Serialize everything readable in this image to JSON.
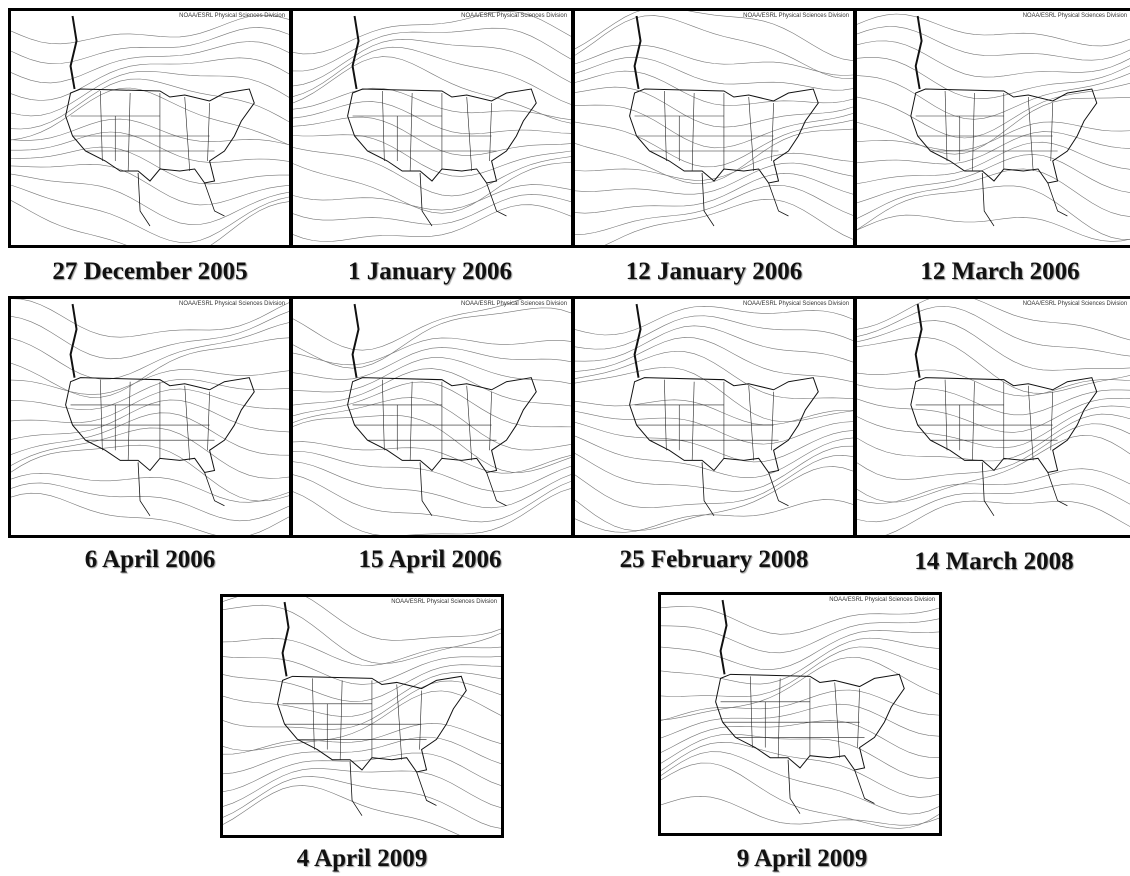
{
  "panels": [
    {
      "caption": "27 December 2005",
      "credit": "NOAA/ESRL Physical Sciences Division"
    },
    {
      "caption": "1 January 2006",
      "credit": "NOAA/ESRL Physical Sciences Division"
    },
    {
      "caption": "12 January 2006",
      "credit": "NOAA/ESRL Physical Sciences Division"
    },
    {
      "caption": "12 March 2006",
      "credit": "NOAA/ESRL Physical Sciences Division"
    },
    {
      "caption": "6 April 2006",
      "credit": "NOAA/ESRL Physical Sciences Division"
    },
    {
      "caption": "15 April 2006",
      "credit": "NOAA/ESRL Physical Sciences Division"
    },
    {
      "caption": "25 February 2008",
      "credit": "NOAA/ESRL Physical Sciences Division"
    },
    {
      "caption": "14 March 2008",
      "credit": "NOAA/ESRL Physical Sciences Division"
    },
    {
      "caption": "4 April 2009",
      "credit": "NOAA/ESRL Physical Sciences Division"
    },
    {
      "caption": "9 April 2009",
      "credit": "NOAA/ESRL Physical Sciences Division"
    }
  ]
}
